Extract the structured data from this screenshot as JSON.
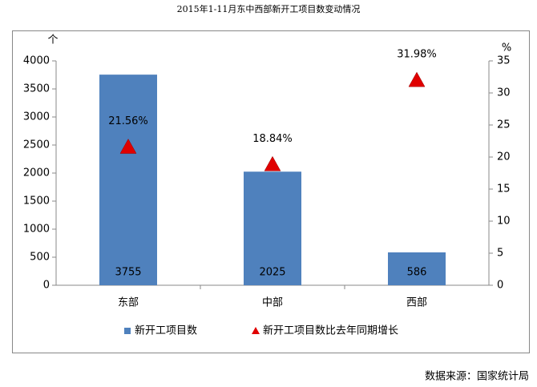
{
  "chart_data": {
    "type": "bar",
    "title": "2015年1-11月东中西部新开工项目数变动情况",
    "ylabel": "个",
    "y2label": "%",
    "categories": [
      "东部",
      "中部",
      "西部"
    ],
    "series": [
      {
        "name": "新开工项目数",
        "type": "bar",
        "color": "#4f81bd",
        "values": [
          3755,
          2025,
          586
        ]
      },
      {
        "name": "新开工项目数比去年同期增长",
        "type": "marker",
        "axis": "y2",
        "color": "#e00000",
        "values": [
          21.56,
          18.84,
          31.98
        ],
        "value_labels": [
          "21.56%",
          "18.84%",
          "31.98%"
        ]
      }
    ],
    "ylim": [
      0,
      4000
    ],
    "yticks": [
      0,
      500,
      1000,
      1500,
      2000,
      2500,
      3000,
      3500,
      4000
    ],
    "y2lim": [
      0,
      35
    ],
    "y2ticks": [
      0,
      5,
      10,
      15,
      20,
      25,
      30,
      35
    ],
    "source": "数据来源：国家统计局"
  }
}
